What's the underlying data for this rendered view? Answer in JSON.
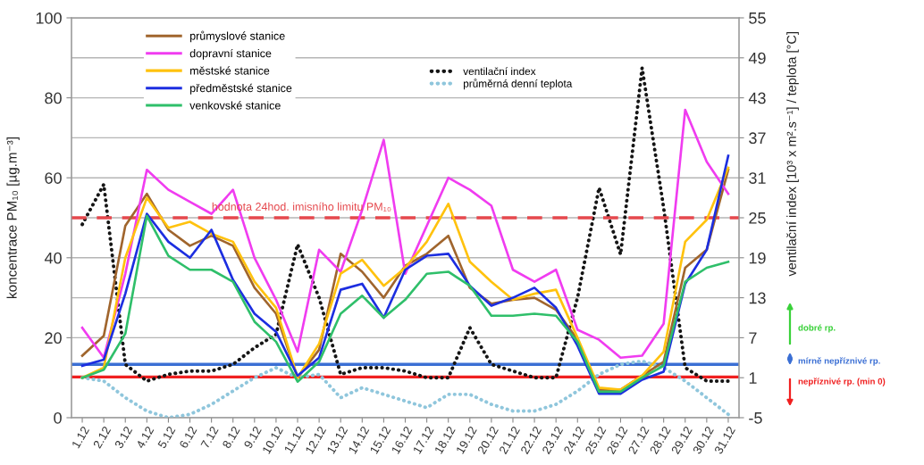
{
  "chart_data": {
    "type": "line",
    "categories": [
      "1.12",
      "2.12",
      "3.12",
      "4.12",
      "5.12",
      "6.12",
      "7.12",
      "8.12",
      "9.12",
      "10.12",
      "11.12",
      "12.12",
      "13.12",
      "14.12",
      "15.12",
      "16.12",
      "17.12",
      "18.12",
      "19.12",
      "20.12",
      "21.12",
      "22.12",
      "23.12",
      "24.12",
      "25.12",
      "26.12",
      "27.12",
      "28.12",
      "29.12",
      "30.12",
      "31.12"
    ],
    "series": [
      {
        "name": "průmyslové stanice",
        "color": "#a0652d",
        "values": [
          15.5,
          20.5,
          48,
          56,
          47,
          43,
          45.5,
          43,
          32.5,
          26,
          10,
          17,
          41,
          36.5,
          30,
          38,
          41,
          45.5,
          32.5,
          28.5,
          29.5,
          30,
          27,
          19.5,
          7,
          7,
          10.5,
          14,
          37.5,
          42,
          62
        ]
      },
      {
        "name": "dopravní stanice",
        "color": "#f03cf0",
        "values": [
          22.5,
          15,
          36,
          62,
          57,
          54,
          51,
          57,
          40,
          29.5,
          16.5,
          42,
          36.5,
          52,
          69.5,
          36,
          48,
          60,
          57,
          53,
          37,
          34,
          37,
          22,
          19.5,
          15,
          15.5,
          23.5,
          77,
          64,
          56
        ]
      },
      {
        "name": "městské stanice",
        "color": "#ffc20e",
        "values": [
          10,
          12.5,
          40,
          55,
          47.5,
          49,
          46,
          44,
          34,
          27.5,
          10,
          18.5,
          36,
          39.5,
          33,
          37.5,
          44,
          53.5,
          39,
          34,
          29.5,
          31,
          32,
          20,
          7.5,
          7,
          10.5,
          16.5,
          44,
          49.5,
          62.5
        ]
      },
      {
        "name": "předměstské stanice",
        "color": "#1c2ee0",
        "values": [
          13,
          14.5,
          31,
          51,
          44,
          40,
          47,
          34.5,
          26,
          21.5,
          10.5,
          15,
          32,
          33.5,
          25,
          37,
          40.5,
          41,
          33,
          28,
          30,
          32.5,
          27.5,
          18,
          6,
          6,
          9.5,
          11.5,
          33.5,
          42,
          65.5
        ]
      },
      {
        "name": "venkovské stanice",
        "color": "#2fbf6a",
        "values": [
          10,
          12,
          21,
          50.5,
          40.5,
          37,
          37,
          34,
          24,
          19,
          9,
          14,
          26,
          30.5,
          25,
          29.5,
          36,
          36.5,
          33,
          25.5,
          25.5,
          26,
          25.5,
          19,
          6.5,
          6.5,
          10,
          13,
          34,
          37.5,
          39
        ]
      },
      {
        "name": "ventilační index",
        "color": "#151515",
        "axis": "y2",
        "line_style": "dotted",
        "values": [
          24,
          30,
          3,
          0.5,
          1.5,
          2,
          2,
          3,
          5.5,
          7.5,
          21,
          13,
          1.5,
          2.5,
          2.5,
          2,
          1,
          1,
          8.5,
          3,
          2,
          1,
          1,
          13,
          29.5,
          19.5,
          47.5,
          26.5,
          2.5,
          0.5,
          0.5
        ]
      },
      {
        "name": "průměrná denní teplota",
        "color": "#8fc6dc",
        "axis": "y2",
        "line_style": "dotted",
        "values": [
          1,
          0.5,
          -2,
          -4,
          -5,
          -4.5,
          -3,
          -1,
          1,
          2.5,
          1,
          1.5,
          -2,
          -0.5,
          -1.5,
          -2.5,
          -3.5,
          -1.5,
          -1.5,
          -3,
          -4,
          -4,
          -3,
          -1,
          1.5,
          3,
          3.5,
          2.5,
          0.5,
          -2,
          -4.5
        ]
      }
    ],
    "ylabel": "koncentrace PM₁₀ [µg.m⁻³]",
    "y2label": "ventilační index [10³ x m².s⁻¹] / teplota [°C]",
    "ylim": [
      0,
      100
    ],
    "yticks": [
      0,
      20,
      40,
      60,
      80,
      100
    ],
    "y2lim": [
      -5,
      55
    ],
    "y2ticks": [
      -5,
      1,
      7,
      13,
      19,
      25,
      31,
      37,
      43,
      49,
      55
    ],
    "ref_lines": [
      {
        "axis": "y",
        "value": 50,
        "label": "hodnota 24hod. imisního limitu PM₁₀",
        "color": "#e5484d",
        "line_style": "dashed"
      },
      {
        "axis": "y2",
        "value": 3,
        "color": "#3b6fd4",
        "line_style": "solid"
      },
      {
        "axis": "y2",
        "value": 1.1,
        "color": "#f02020",
        "line_style": "solid"
      }
    ],
    "annotations": [
      "dobré rp.",
      "mírně nepříznivé rp.",
      "nepříznivé rp. (min 0)"
    ],
    "grid": "y",
    "legend": "top left",
    "line_style": "solid"
  }
}
